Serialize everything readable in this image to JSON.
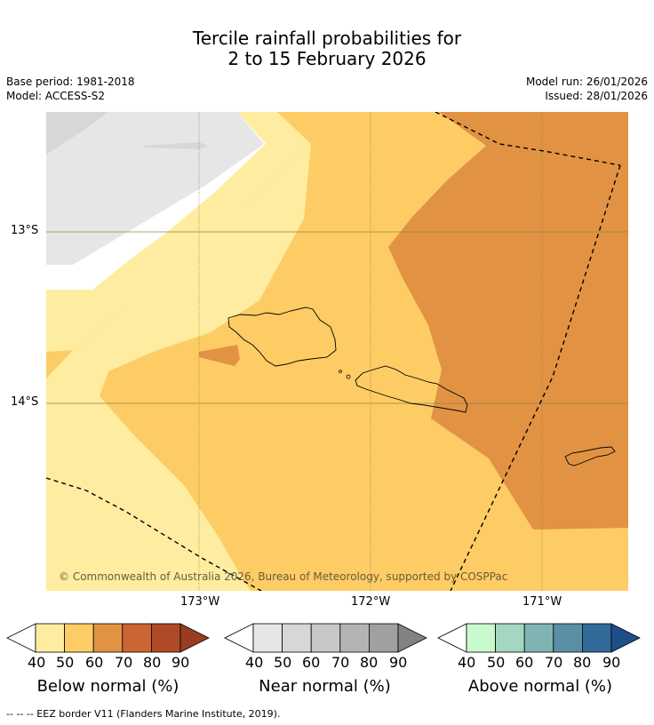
{
  "title": {
    "line1": "Tercile rainfall probabilities for",
    "line2": "2 to 15 February 2026"
  },
  "meta": {
    "base_period": "Base period: 1981-2018",
    "model": "Model: ACCESS-S2",
    "model_run": "Model run: 26/01/2026",
    "issued": "Issued: 28/01/2026"
  },
  "axes": {
    "lat_ticks": [
      "13°S",
      "14°S"
    ],
    "lon_ticks": [
      "173°W",
      "172°W",
      "171°W"
    ]
  },
  "map": {
    "copyright": "© Commonwealth of Australia 2026, Bureau of Meteorology, supported by COSPPac"
  },
  "colorbars": [
    {
      "label": "Below normal (%)",
      "ticks": [
        "40",
        "50",
        "60",
        "70",
        "80",
        "90"
      ],
      "colors": [
        "#ffffff",
        "#feeda0",
        "#fdcc64",
        "#e19343",
        "#cc6434",
        "#b04a26",
        "#983d22"
      ]
    },
    {
      "label": "Near normal (%)",
      "ticks": [
        "40",
        "50",
        "60",
        "70",
        "80",
        "90"
      ],
      "colors": [
        "#ffffff",
        "#e6e6e6",
        "#d7d7d7",
        "#c8c8c8",
        "#b4b4b4",
        "#a0a0a0",
        "#828282"
      ]
    },
    {
      "label": "Above normal (%)",
      "ticks": [
        "40",
        "50",
        "60",
        "70",
        "80",
        "90"
      ],
      "colors": [
        "#ffffff",
        "#c8facd",
        "#a3d7c0",
        "#7fb4b3",
        "#5a90a6",
        "#326a9a",
        "#1f4f8a"
      ]
    }
  ],
  "footer": {
    "legend_text": "-- -- -- EEZ border V11 (Flanders Marine Institute, 2019)."
  }
}
